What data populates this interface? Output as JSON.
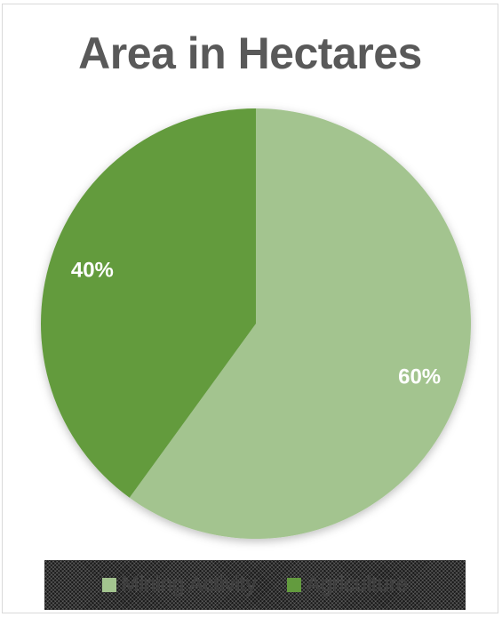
{
  "chart_data": {
    "type": "pie",
    "title": "Area in Hectares",
    "slices": [
      {
        "name": "Mining Activity",
        "value": 60,
        "label": "60%",
        "color": "#a3c48f"
      },
      {
        "name": "Agriculture",
        "value": 40,
        "label": "40%",
        "color": "#639b3e"
      }
    ],
    "legend_position": "bottom",
    "label_color": "#ffffff"
  }
}
